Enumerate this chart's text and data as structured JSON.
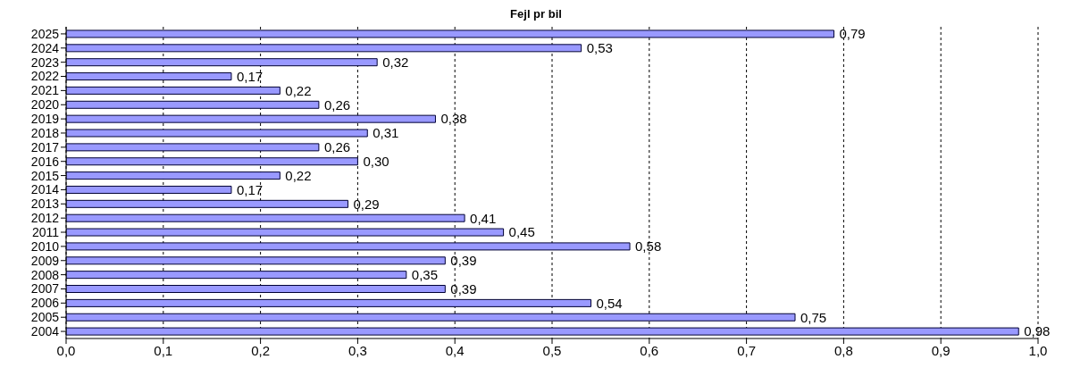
{
  "chart_data": {
    "type": "bar",
    "orientation": "horizontal",
    "title": "Fejl pr bil",
    "categories": [
      "2025",
      "2024",
      "2023",
      "2022",
      "2021",
      "2020",
      "2019",
      "2018",
      "2017",
      "2016",
      "2015",
      "2014",
      "2013",
      "2012",
      "2011",
      "2010",
      "2009",
      "2008",
      "2007",
      "2006",
      "2005",
      "2004"
    ],
    "values": [
      0.79,
      0.53,
      0.32,
      0.17,
      0.22,
      0.26,
      0.38,
      0.31,
      0.26,
      0.3,
      0.22,
      0.17,
      0.29,
      0.41,
      0.45,
      0.58,
      0.39,
      0.35,
      0.39,
      0.54,
      0.75,
      0.98
    ],
    "value_labels": [
      "0,79",
      "0,53",
      "0,32",
      "0,17",
      "0,22",
      "0,26",
      "0,38",
      "0,31",
      "0,26",
      "0,30",
      "0,22",
      "0,17",
      "0,29",
      "0,41",
      "0,45",
      "0,58",
      "0,39",
      "0,35",
      "0,39",
      "0,54",
      "0,75",
      "0,98"
    ],
    "color": "#9999ff",
    "xlim": [
      0,
      1
    ],
    "xticks": [
      {
        "value": 0,
        "label": "0,0"
      },
      {
        "value": 0.1,
        "label": "0,1"
      },
      {
        "value": 0.2,
        "label": "0,2"
      },
      {
        "value": 0.3,
        "label": "0,3"
      },
      {
        "value": 0.4,
        "label": "0,4"
      },
      {
        "value": 0.5,
        "label": "0,5"
      },
      {
        "value": 0.6,
        "label": "0,6"
      },
      {
        "value": 0.7,
        "label": "0,7"
      },
      {
        "value": 0.8,
        "label": "0,8"
      },
      {
        "value": 0.9,
        "label": "0,9"
      },
      {
        "value": 1,
        "label": "1,0"
      }
    ],
    "grid": "x"
  }
}
